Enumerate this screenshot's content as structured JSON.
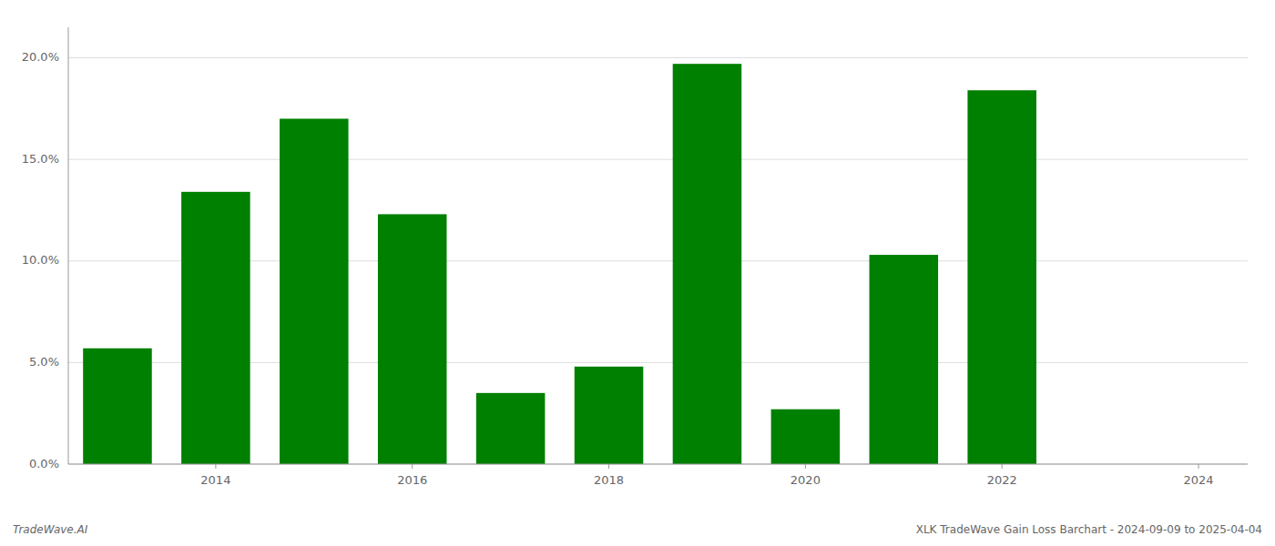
{
  "chart_data": {
    "type": "bar",
    "x": [
      2013,
      2014,
      2015,
      2016,
      2017,
      2018,
      2019,
      2020,
      2021,
      2022,
      2023
    ],
    "values": [
      0.057,
      0.134,
      0.17,
      0.123,
      0.035,
      0.048,
      0.197,
      0.027,
      0.103,
      0.184,
      0.0
    ],
    "color": "#008000",
    "xlim": [
      2012.5,
      2024.5
    ],
    "xticks": [
      2014,
      2016,
      2018,
      2020,
      2022,
      2024
    ],
    "ylim": [
      0.0,
      0.215
    ],
    "yticks": [
      {
        "value": 0.0,
        "label": "0.0%"
      },
      {
        "value": 0.05,
        "label": "5.0%"
      },
      {
        "value": 0.1,
        "label": "10.0%"
      },
      {
        "value": 0.15,
        "label": "15.0%"
      },
      {
        "value": 0.2,
        "label": "20.0%"
      }
    ],
    "grid": true,
    "annotations": [
      "TradeWave.AI",
      "XLK TradeWave Gain Loss Barchart - 2024-09-09 to 2025-04-04"
    ]
  }
}
